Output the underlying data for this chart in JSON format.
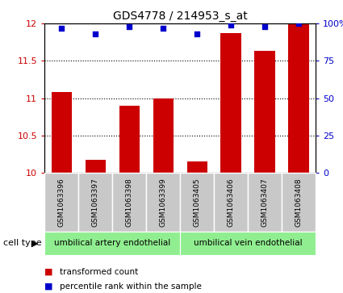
{
  "title": "GDS4778 / 214953_s_at",
  "samples": [
    "GSM1063396",
    "GSM1063397",
    "GSM1063398",
    "GSM1063399",
    "GSM1063405",
    "GSM1063406",
    "GSM1063407",
    "GSM1063408"
  ],
  "red_values": [
    11.08,
    10.18,
    10.9,
    11.0,
    10.15,
    11.87,
    11.63,
    12.0
  ],
  "blue_values": [
    97,
    93,
    98,
    97,
    93,
    99,
    98,
    100
  ],
  "ylim_left": [
    10,
    12
  ],
  "ylim_right": [
    0,
    100
  ],
  "yticks_left": [
    10,
    10.5,
    11,
    11.5,
    12
  ],
  "yticks_right": [
    0,
    25,
    50,
    75,
    100
  ],
  "cell_type_groups": [
    {
      "label": "umbilical artery endothelial",
      "start": 0,
      "end": 3
    },
    {
      "label": "umbilical vein endothelial",
      "start": 4,
      "end": 7
    }
  ],
  "bar_color": "#CC0000",
  "dot_color": "#0000CC",
  "bg_color": "#FFFFFF",
  "tick_color_left": "#CC0000",
  "tick_color_right": "#0000CC",
  "legend_red": "transformed count",
  "legend_blue": "percentile rank within the sample",
  "sample_box_color": "#C8C8C8",
  "cell_type_color": "#90EE90",
  "cell_type_label": "cell type"
}
